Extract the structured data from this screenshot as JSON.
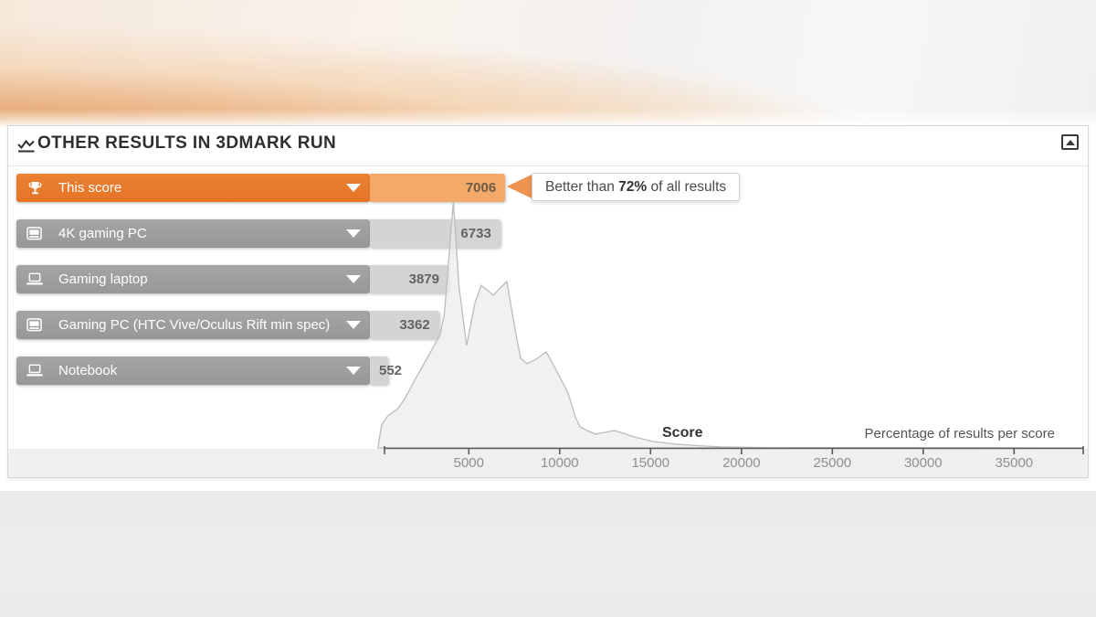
{
  "header": {
    "title": "OTHER RESULTS IN 3DMARK RUN",
    "icon": "line-chart-icon",
    "collapse_icon": "collapse-up-icon"
  },
  "tooltip": {
    "prefix": "Better than ",
    "highlight": "72%",
    "suffix": " of all results"
  },
  "rows": [
    {
      "label": "This score",
      "value": "7006",
      "score": 7006,
      "icon": "trophy-icon",
      "highlight": true
    },
    {
      "label": "4K gaming PC",
      "value": "6733",
      "score": 6733,
      "icon": "desktop-icon",
      "highlight": false
    },
    {
      "label": "Gaming laptop",
      "value": "3879",
      "score": 3879,
      "icon": "laptop-icon",
      "highlight": false
    },
    {
      "label": "Gaming PC (HTC Vive/Oculus Rift min spec)",
      "value": "3362",
      "score": 3362,
      "icon": "desktop-icon",
      "highlight": false
    },
    {
      "label": "Notebook",
      "value": "552",
      "score": 552,
      "icon": "laptop-icon",
      "highlight": false
    }
  ],
  "chart_data": {
    "type": "area",
    "title": "Score distribution of all 3DMark results",
    "xlabel": "Score",
    "ylabel": "Percentage of results per score",
    "xlim": [
      0,
      39000
    ],
    "x_ticks": [
      5000,
      10000,
      15000,
      20000,
      25000,
      30000,
      35000
    ],
    "grid": false,
    "legend": "none",
    "y_values_are_percent_of_max": true,
    "points": [
      [
        200,
        9.3
      ],
      [
        550,
        13
      ],
      [
        1050,
        15.6
      ],
      [
        1450,
        19.6
      ],
      [
        2050,
        27.8
      ],
      [
        2900,
        38.9
      ],
      [
        3400,
        45.6
      ],
      [
        3650,
        53.7
      ],
      [
        3850,
        72.2
      ],
      [
        4150,
        100
      ],
      [
        4450,
        65.9
      ],
      [
        4880,
        41.5
      ],
      [
        5330,
        58.5
      ],
      [
        5680,
        65.9
      ],
      [
        6340,
        61.9
      ],
      [
        6740,
        64.8
      ],
      [
        7090,
        67.4
      ],
      [
        7590,
        46.3
      ],
      [
        7850,
        36.3
      ],
      [
        8200,
        34.1
      ],
      [
        8700,
        35.9
      ],
      [
        9260,
        38.9
      ],
      [
        9760,
        32.2
      ],
      [
        10460,
        22.2
      ],
      [
        10860,
        12.6
      ],
      [
        11120,
        8.5
      ],
      [
        11620,
        6.7
      ],
      [
        11970,
        5.6
      ],
      [
        12470,
        6.3
      ],
      [
        13030,
        7
      ],
      [
        13630,
        5.6
      ],
      [
        14130,
        4.4
      ],
      [
        15130,
        2.6
      ],
      [
        16390,
        1.5
      ],
      [
        17650,
        0.9
      ],
      [
        18900,
        0.4
      ],
      [
        20900,
        0.2
      ],
      [
        24450,
        0.1
      ],
      [
        29450,
        0.1
      ],
      [
        38800,
        0
      ]
    ]
  },
  "colors": {
    "accent_orange": "#e87b2e",
    "accent_orange_light": "#f3a967",
    "arrow_orange": "#ef9350",
    "bar_gray": "#9d9d9d",
    "bar_gray_light": "#d4d4d4",
    "strip_gray": "#efefef",
    "hist_fill": "#ececec",
    "hist_stroke": "#bcbcbc",
    "axis_line": "#5a5a5a",
    "tick_text": "#8f8f8f"
  }
}
